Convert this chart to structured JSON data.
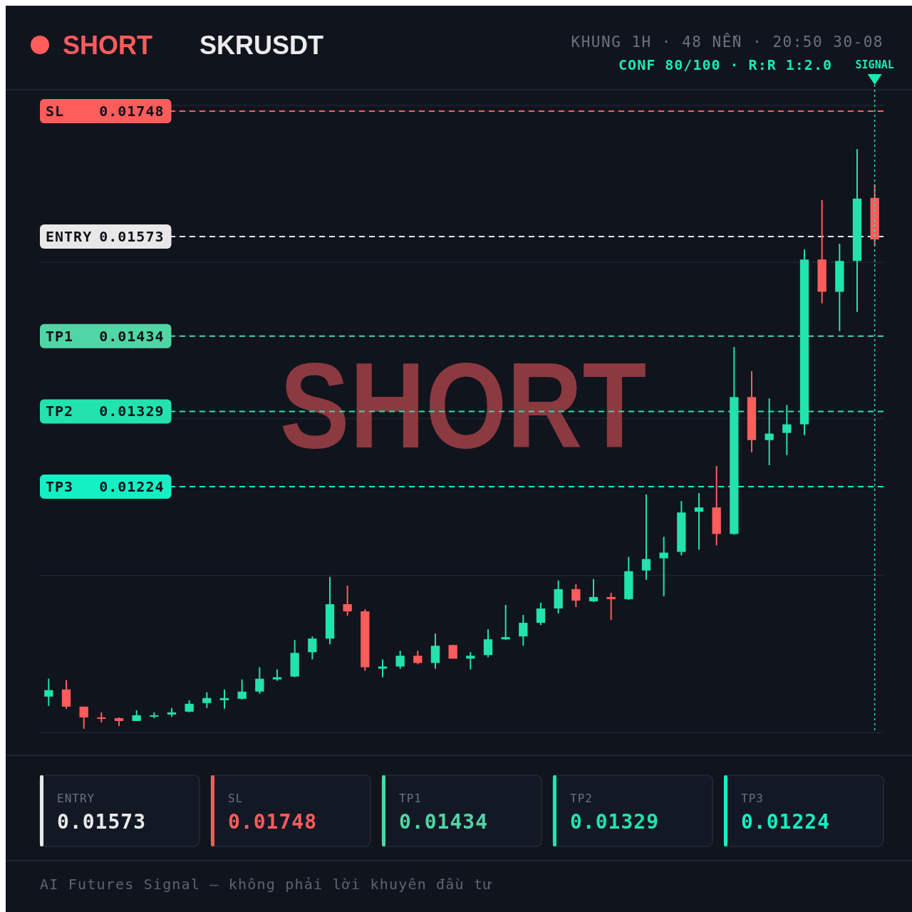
{
  "chart_data": [
    {
      "type": "candlestick",
      "title": "SKRUSDT",
      "annotations": [
        "SHORT",
        "KHUNG 1H · 48 NẾN · 20:50 30-08",
        "CONF 80/100 · R:R 1:2.0",
        "SHORT",
        "AI Futures Signal — không phải lời khuyên đầu tư",
        {
          "text": "SIGNAL"
        }
      ],
      "categories": [
        null,
        null,
        null,
        null,
        null,
        null,
        null,
        null,
        null,
        null,
        null,
        null,
        null,
        null,
        null,
        null,
        null,
        null,
        null,
        null,
        null,
        null,
        null,
        null,
        null,
        null,
        null,
        null,
        null,
        null,
        null,
        null,
        null,
        null,
        null,
        null,
        null,
        null,
        null,
        null,
        null,
        null,
        null,
        null,
        null,
        null,
        null,
        null
      ],
      "ohlc": [
        [
          0.00931,
          0.00956,
          0.00918,
          0.0094
        ],
        [
          0.00941,
          0.00954,
          0.00914,
          0.00917
        ],
        [
          0.00917,
          0.00917,
          0.00886,
          0.00902
        ],
        [
          0.00902,
          0.00909,
          0.00895,
          0.009
        ],
        [
          0.00901,
          0.00902,
          0.0089,
          0.00897
        ],
        [
          0.00897,
          0.00912,
          0.00897,
          0.00905
        ],
        [
          0.00903,
          0.00909,
          0.00901,
          0.00905
        ],
        [
          0.00906,
          0.00915,
          0.00903,
          0.00909
        ],
        [
          0.0091,
          0.00926,
          0.00909,
          0.00921
        ],
        [
          0.00922,
          0.00937,
          0.00915,
          0.00929
        ],
        [
          0.00926,
          0.00941,
          0.00914,
          0.00929
        ],
        [
          0.00928,
          0.00955,
          0.00927,
          0.00938
        ],
        [
          0.00938,
          0.00972,
          0.00935,
          0.00956
        ],
        [
          0.00955,
          0.00969,
          0.00953,
          0.00958
        ],
        [
          0.00959,
          0.0101,
          0.00958,
          0.00992
        ],
        [
          0.00993,
          0.01015,
          0.00983,
          0.01012
        ],
        [
          0.01012,
          0.01098,
          0.01004,
          0.0106
        ],
        [
          0.0106,
          0.01086,
          0.01044,
          0.0105
        ],
        [
          0.0105,
          0.01053,
          0.00967,
          0.00972
        ],
        [
          0.0097,
          0.00983,
          0.00958,
          0.00973
        ],
        [
          0.00973,
          0.00995,
          0.0097,
          0.00988
        ],
        [
          0.00988,
          0.00995,
          0.00976,
          0.00978
        ],
        [
          0.00978,
          0.01019,
          0.0097,
          0.01002
        ],
        [
          0.01003,
          0.01003,
          0.00984,
          0.00984
        ],
        [
          0.00984,
          0.00993,
          0.00969,
          0.00988
        ],
        [
          0.00989,
          0.01025,
          0.00986,
          0.01011
        ],
        [
          0.01011,
          0.01059,
          0.0101,
          0.01014
        ],
        [
          0.01015,
          0.01045,
          0.01002,
          0.01034
        ],
        [
          0.01034,
          0.01062,
          0.01031,
          0.01054
        ],
        [
          0.01054,
          0.01093,
          0.01047,
          0.01081
        ],
        [
          0.01081,
          0.01088,
          0.01056,
          0.01065
        ],
        [
          0.01064,
          0.01095,
          0.01063,
          0.0107
        ],
        [
          0.0107,
          0.01076,
          0.01038,
          0.01067
        ],
        [
          0.01067,
          0.01126,
          0.01066,
          0.01106
        ],
        [
          0.01107,
          0.01213,
          0.01094,
          0.01123
        ],
        [
          0.01124,
          0.01154,
          0.01071,
          0.01132
        ],
        [
          0.01133,
          0.01204,
          0.01128,
          0.01188
        ],
        [
          0.01189,
          0.01215,
          0.01136,
          0.01195
        ],
        [
          0.01195,
          0.01253,
          0.01142,
          0.01158
        ],
        [
          0.01158,
          0.01419,
          0.01157,
          0.01349
        ],
        [
          0.01349,
          0.01385,
          0.01272,
          0.01289
        ],
        [
          0.01289,
          0.01347,
          0.01254,
          0.01298
        ],
        [
          0.01299,
          0.01338,
          0.01268,
          0.01311
        ],
        [
          0.01311,
          0.01555,
          0.01296,
          0.01541
        ],
        [
          0.01541,
          0.01624,
          0.0148,
          0.01496
        ],
        [
          0.01496,
          0.01563,
          0.01441,
          0.01539
        ],
        [
          0.01539,
          0.01695,
          0.01468,
          0.01626
        ],
        [
          0.01627,
          0.01646,
          0.0156,
          0.01569
        ]
      ],
      "ylim": [
        0.00881,
        0.01756
      ],
      "yticks": [
        {
          "value": 0.00881,
          "label": null
        },
        {
          "value": 0.011,
          "label": null
        },
        0.01224,
        {
          "value": 0.01319,
          "label": null
        },
        0.01329,
        0.01434,
        {
          "value": 0.01537,
          "label": null
        },
        0.01573,
        0.01748,
        {
          "value": 0.01756,
          "label": null
        }
      ],
      "grid": "y",
      "tick_labels": "y",
      "ref_lines": [
        {
          "axis": "y",
          "value": 0.01573,
          "label": "ENTRY",
          "color": "#e8e8e8",
          "line_style": "dashed"
        },
        {
          "axis": "y",
          "value": 0.01748,
          "label": "SL",
          "color": "#ff5c5c",
          "line_style": "dashed"
        },
        {
          "axis": "y",
          "value": 0.01434,
          "label": "TP1",
          "color": "#4fd6a4",
          "line_style": "dashed"
        },
        {
          "axis": "y",
          "value": 0.01329,
          "label": "TP2",
          "color": "#22e3ae",
          "line_style": "dashed"
        },
        {
          "axis": "y",
          "value": 0.01224,
          "label": "TP3",
          "color": "#14f0c4",
          "line_style": "dashed"
        }
      ]
    },
    {
      "type": "other",
      "categories": [
        "ENTRY",
        "SL",
        "TP1",
        "TP2",
        "TP3"
      ],
      "values": [
        0.01573,
        0.01748,
        0.01434,
        0.01329,
        0.01224
      ],
      "data_labels": true
    }
  ]
}
